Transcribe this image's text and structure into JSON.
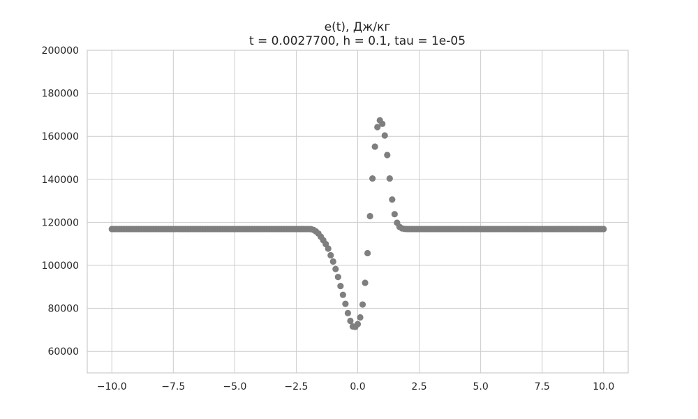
{
  "chart_data": {
    "type": "scatter",
    "title": "e(t), Дж/кг",
    "subtitle": "t = 0.0027700, h = 0.1, tau = 1e-05",
    "xlabel": "",
    "ylabel": "",
    "xlim": [
      -11.0,
      11.0
    ],
    "ylim": [
      50000,
      200000
    ],
    "xticks": [
      -10,
      -7.5,
      -5,
      -2.5,
      0,
      2.5,
      5,
      7.5,
      10
    ],
    "xtick_labels": [
      "−10.0",
      "−7.5",
      "−5.0",
      "−2.5",
      "0.0",
      "2.5",
      "5.0",
      "7.5",
      "10.0"
    ],
    "yticks": [
      60000,
      80000,
      100000,
      120000,
      140000,
      160000,
      180000,
      200000
    ],
    "ytick_labels": [
      "60000",
      "80000",
      "100000",
      "120000",
      "140000",
      "160000",
      "180000",
      "200000"
    ],
    "grid": true,
    "marker_color": "#7f7f7f",
    "baseline_start": -10.0,
    "baseline_end": 10.0,
    "baseline_step": 0.1,
    "baseline_value": 116900,
    "points": [
      [
        -1.9,
        116850
      ],
      [
        -1.8,
        116500
      ],
      [
        -1.7,
        115800
      ],
      [
        -1.6,
        114800
      ],
      [
        -1.5,
        113300
      ],
      [
        -1.4,
        111700
      ],
      [
        -1.3,
        109900
      ],
      [
        -1.2,
        107800
      ],
      [
        -1.1,
        104700
      ],
      [
        -1.0,
        101800
      ],
      [
        -0.9,
        98300
      ],
      [
        -0.8,
        94600
      ],
      [
        -0.7,
        90400
      ],
      [
        -0.6,
        86300
      ],
      [
        -0.5,
        82100
      ],
      [
        -0.4,
        77800
      ],
      [
        -0.3,
        74200
      ],
      [
        -0.2,
        71600
      ],
      [
        -0.1,
        71400
      ],
      [
        0.0,
        72700
      ],
      [
        0.1,
        75800
      ],
      [
        0.2,
        81800
      ],
      [
        0.3,
        91900
      ],
      [
        0.4,
        105700
      ],
      [
        0.5,
        122900
      ],
      [
        0.6,
        140400
      ],
      [
        0.7,
        155200
      ],
      [
        0.8,
        164300
      ],
      [
        0.9,
        167400
      ],
      [
        1.0,
        165800
      ],
      [
        1.1,
        160400
      ],
      [
        1.2,
        151300
      ],
      [
        1.3,
        140400
      ],
      [
        1.4,
        130600
      ],
      [
        1.5,
        123800
      ],
      [
        1.6,
        119800
      ],
      [
        1.7,
        117900
      ],
      [
        1.8,
        117200
      ],
      [
        1.9,
        116950
      ]
    ]
  }
}
